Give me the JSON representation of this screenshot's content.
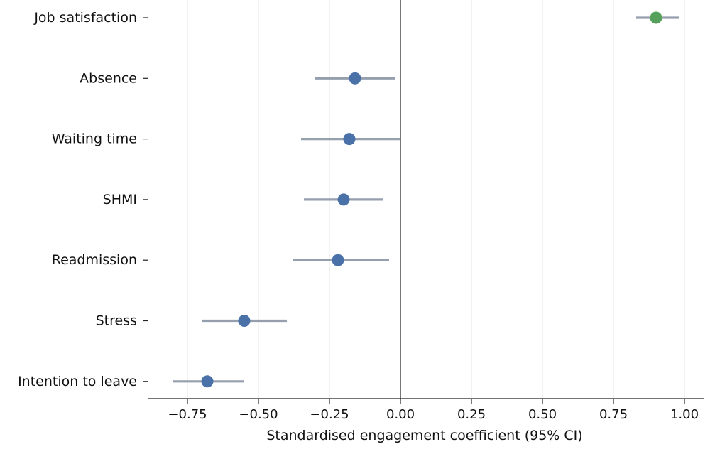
{
  "chart_data": {
    "type": "scatter",
    "subtype": "forest-plot",
    "title": "",
    "xlabel": "Standardised engagement coefficient (95% CI)",
    "ylabel": "",
    "xlim": [
      -0.89,
      1.07
    ],
    "xticks": [
      -0.75,
      -0.5,
      -0.25,
      0.0,
      0.25,
      0.5,
      0.75,
      1.0
    ],
    "xtick_labels": [
      "−0.75",
      "−0.50",
      "−0.25",
      "0.00",
      "0.25",
      "0.50",
      "0.75",
      "1.00"
    ],
    "reference_line_x": 0.0,
    "grid": "vertical",
    "categories": [
      "Job satisfaction",
      "Absence",
      "Waiting time",
      "SHMI",
      "Readmission",
      "Stress",
      "Intention to leave"
    ],
    "estimates": [
      0.9,
      -0.16,
      -0.18,
      -0.2,
      -0.22,
      -0.55,
      -0.68
    ],
    "ci_lower": [
      0.83,
      -0.3,
      -0.35,
      -0.34,
      -0.38,
      -0.7,
      -0.8
    ],
    "ci_upper": [
      0.98,
      -0.02,
      0.0,
      -0.06,
      -0.04,
      -0.4,
      -0.55
    ],
    "colors": {
      "positive": "#55a05a",
      "negative": "#4a72a8",
      "ci": "#959fae",
      "reference": "#555555",
      "grid": "#e6e6e6",
      "axis": "#222222"
    }
  }
}
